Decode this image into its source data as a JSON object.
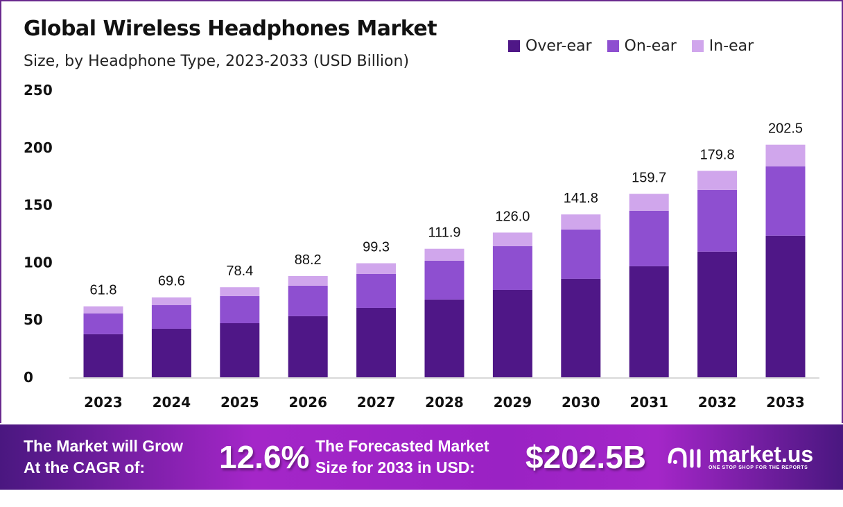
{
  "colors": {
    "over_ear": "#4f1787",
    "on_ear": "#8e4fd0",
    "in_ear": "#d0a6ec",
    "banner": "#a426c8"
  },
  "chart_data": {
    "type": "bar",
    "stacked": true,
    "title": "Global Wireless Headphones Market",
    "subtitle": "Size, by Headphone Type, 2023-2033 (USD Billion)",
    "xlabel": "",
    "ylabel": "",
    "ylim": [
      0,
      250
    ],
    "yticks": [
      0,
      50,
      100,
      150,
      200,
      250
    ],
    "grid": false,
    "legend_position": "top-right",
    "categories": [
      "2023",
      "2024",
      "2025",
      "2026",
      "2027",
      "2028",
      "2029",
      "2030",
      "2031",
      "2032",
      "2033"
    ],
    "series": [
      {
        "name": "Over-ear",
        "values": [
          37.5,
          42.3,
          47.1,
          53.2,
          60.4,
          67.7,
          76.1,
          85.8,
          96.7,
          109.4,
          123.3
        ]
      },
      {
        "name": "On-ear",
        "values": [
          18.1,
          20.5,
          23.6,
          26.6,
          29.6,
          33.8,
          38.1,
          42.9,
          48.3,
          53.7,
          60.4
        ]
      },
      {
        "name": "In-ear",
        "values": [
          6.2,
          6.8,
          7.7,
          8.4,
          9.3,
          10.4,
          11.8,
          13.1,
          14.7,
          16.7,
          18.8
        ]
      }
    ],
    "totals": [
      "61.8",
      "69.6",
      "78.4",
      "88.2",
      "99.3",
      "111.9",
      "126.0",
      "141.8",
      "159.7",
      "179.8",
      "202.5"
    ]
  },
  "banner": {
    "cagr_label_1": "The Market will Grow",
    "cagr_label_2": "At the CAGR of:",
    "cagr_value": "12.6%",
    "forecast_label_1": "The Forecasted Market",
    "forecast_label_2": "Size for 2033 in USD:",
    "forecast_value": "$202.5B",
    "logo_name": "market.us",
    "logo_tagline": "ONE STOP SHOP FOR THE REPORTS"
  }
}
